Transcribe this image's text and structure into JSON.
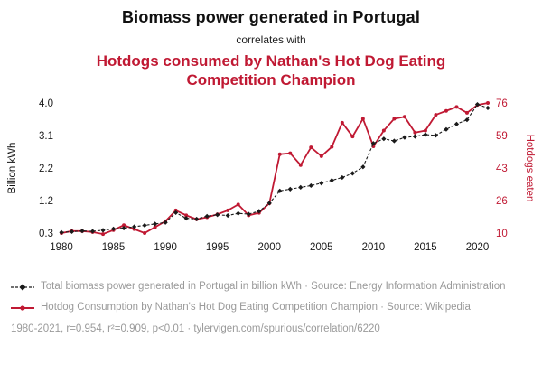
{
  "header": {
    "title": "Biomass power generated in Portugal",
    "connector": "correlates with",
    "subtitle": "Hotdogs consumed by Nathan's Hot Dog Eating Competition Champion"
  },
  "colors": {
    "accent_red": "#c01933",
    "series_black": "#1a1a1a",
    "legend_gray": "#9a9a9a"
  },
  "chart_data": {
    "type": "line",
    "title": "Biomass power generated in Portugal correlates with Hotdogs consumed by Nathan's Hot Dog Eating Competition Champion",
    "grid": false,
    "legend_position": "bottom",
    "x": [
      1980,
      1981,
      1982,
      1983,
      1984,
      1985,
      1986,
      1987,
      1988,
      1989,
      1990,
      1991,
      1992,
      1993,
      1994,
      1995,
      1996,
      1997,
      1998,
      1999,
      2000,
      2001,
      2002,
      2003,
      2004,
      2005,
      2006,
      2007,
      2008,
      2009,
      2010,
      2011,
      2012,
      2013,
      2014,
      2015,
      2016,
      2017,
      2018,
      2019,
      2020,
      2021
    ],
    "x_tick_labels": [
      "1980",
      "1985",
      "1990",
      "1995",
      "2000",
      "2005",
      "2010",
      "2015",
      "2020"
    ],
    "left_axis": {
      "label": "Billion kWh",
      "ticks": [
        "0.3",
        "1.2",
        "2.2",
        "3.1",
        "4.0"
      ],
      "min": 0.3,
      "max": 4.0
    },
    "right_axis": {
      "label": "Hotdogs eaten",
      "ticks": [
        "10",
        "26",
        "43",
        "59",
        "76"
      ],
      "min": 10,
      "max": 76
    },
    "series": [
      {
        "name": "Total biomass power generated in Portugal in billion kWh",
        "axis": "left",
        "style": "dashed-diamond",
        "values": [
          0.32,
          0.34,
          0.36,
          0.35,
          0.38,
          0.42,
          0.44,
          0.48,
          0.52,
          0.56,
          0.6,
          0.88,
          0.72,
          0.7,
          0.78,
          0.82,
          0.8,
          0.86,
          0.84,
          0.92,
          1.15,
          1.5,
          1.55,
          1.6,
          1.65,
          1.72,
          1.8,
          1.88,
          2.0,
          2.18,
          2.85,
          2.98,
          2.92,
          3.02,
          3.05,
          3.1,
          3.08,
          3.25,
          3.4,
          3.52,
          3.96,
          3.86
        ]
      },
      {
        "name": "Hotdog Consumption by Nathan's Hot Dog Eating Competition Champion",
        "axis": "right",
        "style": "solid-marker",
        "values": [
          10,
          11,
          11,
          10.5,
          9.5,
          11.5,
          14,
          12,
          10,
          13,
          16,
          21.5,
          19,
          17,
          18,
          19.5,
          21.5,
          24.5,
          19,
          20.25,
          25.13,
          50,
          50.5,
          44.5,
          53.5,
          49,
          53.75,
          66,
          59,
          68,
          54,
          62,
          68,
          69,
          61,
          62,
          70,
          72,
          74,
          71,
          75,
          76
        ]
      }
    ]
  },
  "legend": {
    "series1": "Total biomass power generated in Portugal in billion kWh · Source: Energy Information Administration",
    "series2": "Hotdog Consumption by Nathan's Hot Dog Eating Competition Champion · Source: Wikipedia",
    "stats": "1980-2021, r=0.954, r²=0.909, p<0.01 · tylervigen.com/spurious/correlation/6220"
  }
}
